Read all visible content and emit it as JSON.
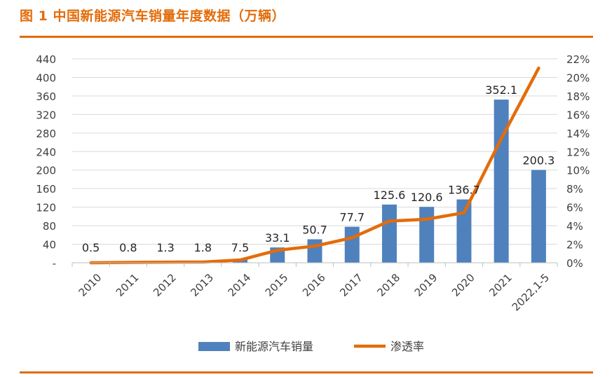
{
  "figure": {
    "title": "图 1  中国新能源汽车销量年度数据（万辆）"
  },
  "colors": {
    "accent": "#e36c0a",
    "bar": "#4f81bd",
    "line": "#e46c0a",
    "grid": "#d9d9d9",
    "text": "#404040"
  },
  "chart_data": {
    "type": "bar",
    "categories": [
      "2010",
      "2011",
      "2012",
      "2013",
      "2014",
      "2015",
      "2016",
      "2017",
      "2018",
      "2019",
      "2020",
      "2021",
      "2022,1-5"
    ],
    "series": [
      {
        "name": "新能源汽车销量",
        "type": "bar",
        "axis": "left",
        "values": [
          0.5,
          0.8,
          1.3,
          1.8,
          7.5,
          33.1,
          50.7,
          77.7,
          125.6,
          120.6,
          136.7,
          352.1,
          200.3
        ],
        "labels": [
          "0.5",
          "0.8",
          "1.3",
          "1.8",
          "7.5",
          "33.1",
          "50.7",
          "77.7",
          "125.6",
          "120.6",
          "136.7",
          "352.1",
          "200.3"
        ]
      },
      {
        "name": "渗透率",
        "type": "line",
        "axis": "right",
        "values": [
          0.0,
          0.04,
          0.07,
          0.08,
          0.3,
          1.35,
          1.8,
          2.7,
          4.5,
          4.7,
          5.4,
          13.4,
          21.0
        ]
      }
    ],
    "y_left": {
      "ylim": [
        0,
        440
      ],
      "ticks": [
        0,
        40,
        80,
        120,
        160,
        200,
        240,
        280,
        320,
        360,
        400,
        440
      ],
      "tick_labels": [
        "-",
        "40",
        "80",
        "120",
        "160",
        "200",
        "240",
        "280",
        "320",
        "360",
        "400",
        "440"
      ]
    },
    "y_right": {
      "ylim": [
        0,
        22
      ],
      "ticks": [
        0,
        2,
        4,
        6,
        8,
        10,
        12,
        14,
        16,
        18,
        20,
        22
      ],
      "tick_labels": [
        "0%",
        "2%",
        "4%",
        "6%",
        "8%",
        "10%",
        "12%",
        "14%",
        "16%",
        "18%",
        "20%",
        "22%"
      ]
    },
    "grid": true,
    "legend": {
      "position": "bottom",
      "entries": [
        {
          "label": "新能源汽车销量",
          "kind": "bar"
        },
        {
          "label": "渗透率",
          "kind": "line"
        }
      ]
    }
  }
}
